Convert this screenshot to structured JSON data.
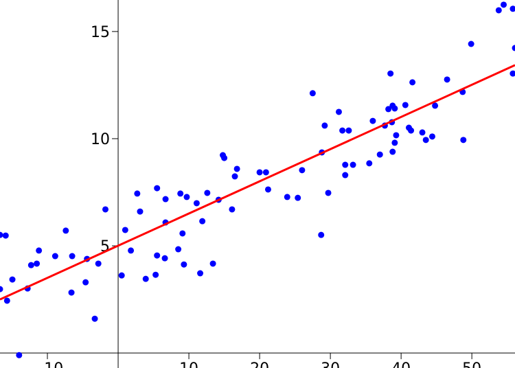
{
  "chart_data": {
    "type": "scatter",
    "xlim": [
      -16.7,
      56.1
    ],
    "ylim": [
      -0.7,
      16.47
    ],
    "xticks": [
      {
        "value": -10,
        "label": "−10"
      },
      10,
      20,
      30,
      40,
      50
    ],
    "yticks": [
      5,
      10,
      15
    ],
    "points": {
      "color": "#0000ff",
      "x": [
        -16.7,
        -15.9,
        -16.7,
        -14.95,
        -15.7,
        -14.0,
        -12.8,
        -12.3,
        -11.5,
        -11.2,
        -8.9,
        -7.4,
        -6.5,
        -6.6,
        -4.6,
        -4.4,
        -3.3,
        -2.8,
        -1.8,
        0.5,
        1.0,
        1.8,
        2.7,
        3.1,
        3.9,
        5.3,
        5.5,
        5.5,
        6.6,
        6.7,
        6.7,
        8.5,
        8.8,
        9.1,
        9.3,
        9.7,
        11.1,
        11.6,
        11.9,
        12.6,
        13.4,
        14.2,
        14.8,
        15.0,
        16.1,
        16.5,
        16.8,
        20.0,
        20.9,
        21.2,
        23.9,
        25.4,
        26.0,
        27.5,
        28.7,
        28.8,
        29.2,
        29.7,
        31.2,
        31.7,
        32.1,
        32.1,
        32.6,
        33.2,
        35.5,
        36.0,
        37.0,
        37.7,
        38.2,
        38.5,
        38.7,
        38.8,
        38.8,
        39.1,
        39.1,
        39.3,
        40.6,
        41.1,
        41.4,
        41.6,
        43.0,
        43.5,
        44.4,
        44.8,
        46.5,
        48.7,
        48.8,
        49.9,
        53.8,
        54.5,
        55.8,
        55.8,
        56.1
      ],
      "y": [
        5.51,
        5.48,
        2.98,
        3.43,
        2.44,
        -0.1,
        3.01,
        4.1,
        4.17,
        4.78,
        4.52,
        5.71,
        4.52,
        2.82,
        3.3,
        4.39,
        1.6,
        4.17,
        6.7,
        3.62,
        5.74,
        4.78,
        7.44,
        6.6,
        3.46,
        3.65,
        7.69,
        4.55,
        4.42,
        6.09,
        7.18,
        4.84,
        7.44,
        5.58,
        4.13,
        7.28,
        6.99,
        3.72,
        6.15,
        7.47,
        4.17,
        7.15,
        9.23,
        9.1,
        6.7,
        8.24,
        8.59,
        8.43,
        8.43,
        7.63,
        7.28,
        7.24,
        8.53,
        12.12,
        5.51,
        9.36,
        10.61,
        7.47,
        11.25,
        10.38,
        8.3,
        8.78,
        10.38,
        8.78,
        8.85,
        10.83,
        9.26,
        10.61,
        11.38,
        13.04,
        10.77,
        9.39,
        11.54,
        9.81,
        11.41,
        10.16,
        11.57,
        10.51,
        10.38,
        12.63,
        10.29,
        9.94,
        10.1,
        11.54,
        12.76,
        12.18,
        9.94,
        14.42,
        15.99,
        16.25,
        16.06,
        13.04,
        14.23
      ]
    },
    "fit_line": {
      "color": "#ff0000",
      "x": [
        -16.7,
        56.1
      ],
      "y": [
        2.5,
        13.43
      ]
    }
  }
}
